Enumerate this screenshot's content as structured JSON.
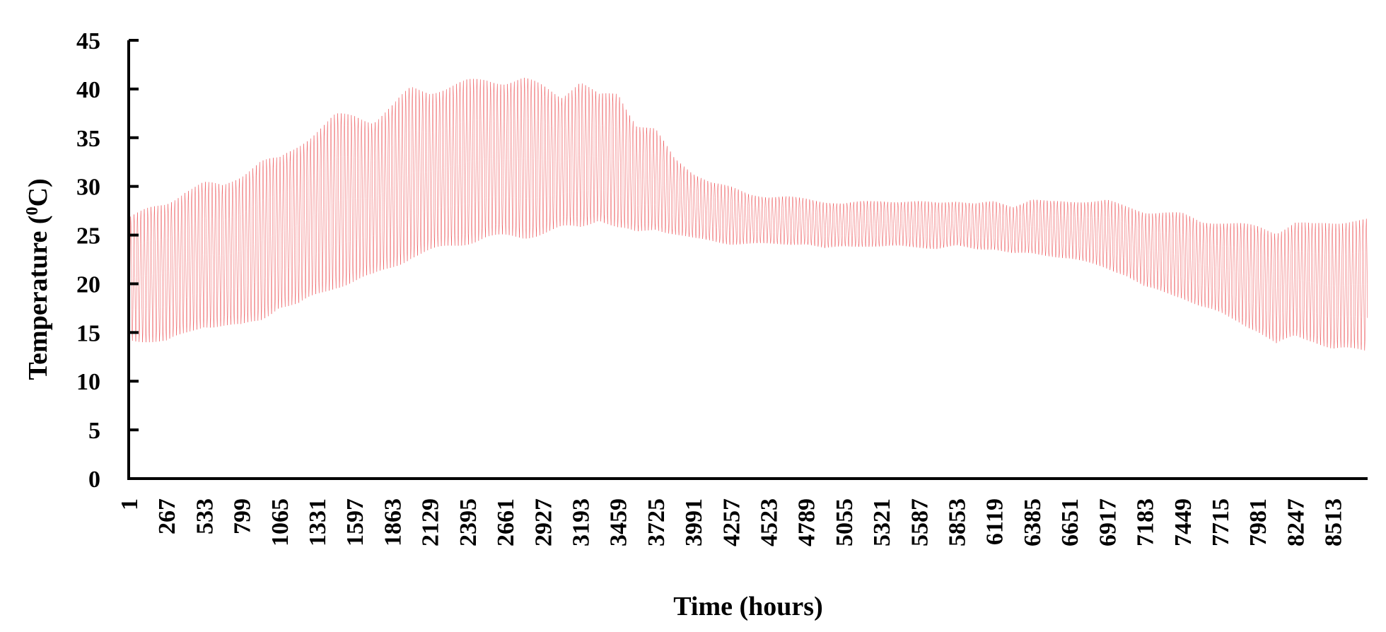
{
  "chart_data": {
    "type": "line",
    "title": "",
    "xlabel": "Time (hours)",
    "ylabel_main": "Temperature (",
    "ylabel_sup": "0",
    "ylabel_end": "C)",
    "ylim": [
      0,
      45
    ],
    "xlim": [
      1,
      8760
    ],
    "y_ticks": [
      0,
      5,
      10,
      15,
      20,
      25,
      30,
      35,
      40,
      45
    ],
    "x_ticks": [
      1,
      267,
      533,
      799,
      1065,
      1331,
      1597,
      1863,
      2129,
      2395,
      2661,
      2927,
      3193,
      3459,
      3725,
      3991,
      4257,
      4523,
      4789,
      5055,
      5321,
      5587,
      5853,
      6119,
      6385,
      6651,
      6917,
      7183,
      7449,
      7715,
      7981,
      8247,
      8513
    ],
    "grid": false,
    "legend": "none",
    "series": [
      {
        "color": "#e8252a",
        "daily_cycle_hours": 24,
        "envelope": {
          "hours": [
            1,
            133,
            267,
            400,
            533,
            666,
            799,
            932,
            1065,
            1198,
            1331,
            1464,
            1597,
            1730,
            1863,
            1996,
            2129,
            2262,
            2395,
            2528,
            2661,
            2794,
            2927,
            3060,
            3193,
            3326,
            3459,
            3592,
            3725,
            3858,
            3991,
            4124,
            4257,
            4390,
            4523,
            4656,
            4789,
            4922,
            5055,
            5188,
            5321,
            5454,
            5587,
            5720,
            5853,
            5986,
            6119,
            6252,
            6385,
            6518,
            6651,
            6784,
            6917,
            7050,
            7183,
            7316,
            7449,
            7582,
            7715,
            7848,
            7981,
            8114,
            8247,
            8380,
            8513,
            8646,
            8760
          ],
          "daily_max": [
            27.0,
            27.8,
            28.5,
            29.8,
            30.5,
            30.3,
            31.5,
            32.8,
            33.0,
            34.5,
            36.0,
            37.5,
            37.5,
            37.0,
            38.5,
            40.3,
            40.0,
            40.5,
            41.0,
            41.2,
            41.0,
            41.3,
            40.5,
            39.5,
            41.0,
            39.5,
            39.8,
            36.5,
            36.0,
            33.0,
            31.5,
            30.5,
            30.0,
            29.3,
            29.0,
            29.0,
            28.8,
            28.5,
            28.3,
            28.5,
            28.6,
            28.5,
            28.5,
            28.4,
            28.6,
            28.3,
            28.5,
            28.0,
            28.8,
            28.5,
            28.5,
            28.6,
            28.7,
            28.0,
            27.5,
            27.5,
            27.3,
            26.5,
            26.5,
            26.3,
            26.0,
            25.5,
            26.5,
            26.2,
            26.5,
            26.8,
            26.8
          ],
          "daily_min": [
            14.0,
            14.0,
            13.8,
            14.5,
            15.5,
            15.5,
            15.3,
            16.0,
            17.5,
            17.5,
            18.5,
            19.5,
            20.0,
            20.5,
            21.5,
            22.5,
            23.0,
            23.5,
            24.0,
            24.5,
            24.5,
            24.5,
            25.0,
            25.5,
            25.5,
            26.5,
            25.5,
            25.0,
            25.5,
            25.0,
            24.5,
            24.3,
            24.0,
            24.0,
            24.0,
            24.0,
            24.0,
            23.5,
            23.8,
            23.8,
            23.7,
            23.8,
            23.7,
            23.5,
            23.8,
            23.5,
            23.5,
            23.0,
            23.0,
            22.8,
            22.5,
            22.0,
            21.5,
            20.8,
            19.5,
            19.0,
            18.5,
            17.5,
            16.8,
            16.0,
            15.0,
            13.5,
            14.5,
            14.0,
            13.0,
            13.0,
            13.0
          ]
        }
      }
    ]
  }
}
